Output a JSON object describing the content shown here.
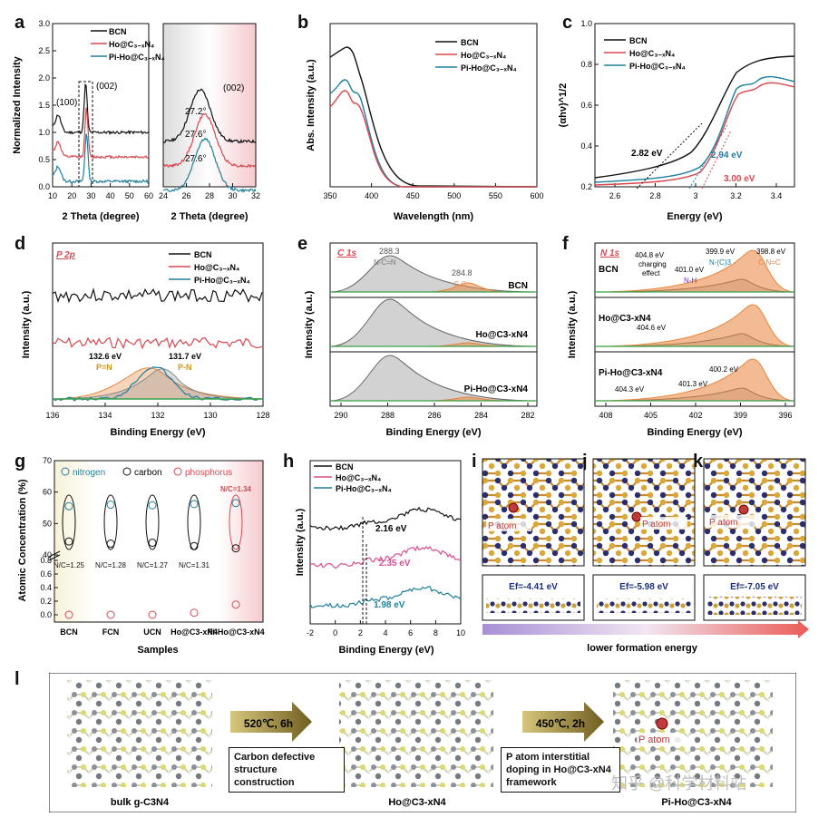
{
  "panel_labels": [
    "a",
    "b",
    "c",
    "d",
    "e",
    "f",
    "g",
    "h",
    "i",
    "j",
    "k",
    "l"
  ],
  "colors": {
    "bcn": "#111111",
    "ho": "#d9474f",
    "pi": "#1f7f9c",
    "orange": "#e8833a",
    "pink": "#d94d8f",
    "gray": "#8a8a8a"
  },
  "samples": {
    "bcn": "BCN",
    "ho": "Ho@C₃₋ₓN₄",
    "pi": "Pi-Ho@C₃₋ₓN₄"
  },
  "chart_data": [
    {
      "id": "a",
      "type": "line",
      "xlabel": "2 Theta (degree)",
      "ylabel": "Normalized Intensity",
      "x_ticks": [
        10,
        20,
        30,
        40,
        50,
        60
      ],
      "y_ticks": [
        0.0,
        0.5,
        1.0,
        1.5,
        2.0,
        2.5,
        3.0
      ],
      "ylim": [
        0,
        3
      ],
      "annotations": [
        "(100)",
        "(002)"
      ],
      "series": [
        {
          "name": "BCN",
          "baseline": 1.0,
          "peak_2theta": 27.2
        },
        {
          "name": "Ho@C3-xN4",
          "baseline": 0.55,
          "peak_2theta": 27.6
        },
        {
          "name": "Pi-Ho@C3-xN4",
          "baseline": 0.1,
          "peak_2theta": 27.6
        }
      ]
    },
    {
      "id": "a-zoom",
      "type": "line",
      "xlabel": "2 Theta (degree)",
      "x_ticks": [
        24,
        26,
        28,
        30,
        32
      ],
      "annotations": [
        "27.2°",
        "27.6°",
        "27.6°",
        "(002)"
      ]
    },
    {
      "id": "b",
      "type": "line",
      "xlabel": "Wavelength (nm)",
      "ylabel": "Abs. Intensity (a.u.)",
      "x_ticks": [
        350,
        400,
        450,
        500,
        550,
        600
      ],
      "legend": [
        "BCN",
        "Ho@C3-xN4",
        "Pi-Ho@C3-xN4"
      ]
    },
    {
      "id": "c",
      "type": "line",
      "xlabel": "Energy (eV)",
      "ylabel": "(αhν)^1/2",
      "x_ticks": [
        2.6,
        2.8,
        3.0,
        3.2,
        3.4
      ],
      "y_ticks": [
        0.2,
        0.4,
        0.6,
        0.8,
        1.0
      ],
      "ylim": [
        0.2,
        1.0
      ],
      "band_gaps": [
        "2.82 eV",
        "2.94 eV",
        "3.00 eV"
      ],
      "legend": [
        "BCN",
        "Ho@C3-xN4",
        "Pi-Ho@C3-xN4"
      ]
    },
    {
      "id": "d",
      "type": "line",
      "title": "P 2p",
      "xlabel": "Binding Energy (eV)",
      "ylabel": "Intensity (a.u.)",
      "x_ticks": [
        136,
        134,
        132,
        130,
        128
      ],
      "peaks": [
        {
          "be": "132.6 eV",
          "label": "P=N"
        },
        {
          "be": "131.7 eV",
          "label": "P-N"
        }
      ]
    },
    {
      "id": "e",
      "type": "line",
      "title": "C 1s",
      "xlabel": "Binding Energy (eV)",
      "ylabel": "Intensity (a.u.)",
      "x_ticks": [
        290,
        288,
        286,
        284,
        282
      ],
      "peaks": [
        {
          "be": "288.3",
          "label": "N-C=N"
        },
        {
          "be": "284.8",
          "label": "C-C"
        }
      ],
      "rows": [
        "BCN",
        "Ho@C3-xN4",
        "Pi-Ho@C3-xN4"
      ]
    },
    {
      "id": "f",
      "type": "line",
      "title": "N 1s",
      "xlabel": "Binding Energy (eV)",
      "ylabel": "Intensity (a.u.)",
      "x_ticks": [
        408,
        405,
        402,
        399,
        396
      ],
      "peaks": [
        "404.8 eV",
        "charging",
        "effect",
        "401.0 eV",
        "N-H",
        "399.9 eV",
        "N-(C)3",
        "398.8 eV",
        "C-N=C",
        "404.6 eV",
        "404.3 eV",
        "401.3 eV",
        "400.2 eV"
      ],
      "rows": [
        "BCN",
        "Ho@C3-xN4",
        "Pi-Ho@C3-xN4"
      ]
    },
    {
      "id": "g",
      "type": "scatter",
      "xlabel": "Samples",
      "ylabel": "Atomic Concentration (%)",
      "categories": [
        "BCN",
        "FCN",
        "UCN",
        "Ho@C3-xN4",
        "Pi-Ho@C3-xN4"
      ],
      "y_ticks_upper": [
        40,
        50,
        60,
        70
      ],
      "y_ticks_lower": [
        0.0,
        0.2,
        0.4,
        0.6,
        0.8
      ],
      "series": [
        {
          "name": "nitrogen",
          "values": [
            55.5,
            56.0,
            55.8,
            56.2,
            56.5
          ]
        },
        {
          "name": "carbon",
          "values": [
            44.3,
            43.6,
            43.9,
            42.8,
            42.1
          ]
        },
        {
          "name": "phosphorus",
          "values": [
            0.0,
            0.0,
            0.0,
            0.03,
            0.15
          ]
        }
      ],
      "ratios": [
        "N/C=1.25",
        "N/C=1.28",
        "N/C=1.27",
        "N/C=1.31",
        "N/C=1.34"
      ],
      "legend": [
        "nitrogen",
        "carbon",
        "phosphorus"
      ]
    },
    {
      "id": "h",
      "type": "line",
      "xlabel": "Binding Energy (eV)",
      "ylabel": "Intensity (a.u.)",
      "x_ticks": [
        -2,
        0,
        2,
        4,
        6,
        8,
        10
      ],
      "vbm": [
        "2.16 eV",
        "2.35 eV",
        "1.98 eV"
      ],
      "legend": [
        "BCN",
        "Ho@C3-xN4",
        "Pi-Ho@C3-xN4"
      ]
    }
  ],
  "dft": {
    "labels": [
      "P atom",
      "P atom",
      "P atom"
    ],
    "energies": [
      "Ef=-4.41 eV",
      "Ef=-5.98 eV",
      "Ef=-7.05 eV"
    ],
    "arrow_text": "lower formation energy"
  },
  "scheme": {
    "step1": "520℃, 6h",
    "step2": "450℃, 2h",
    "box1": "Carbon defective structure construction",
    "box2": "P atom  interstitial doping in Ho@C3-xN4 framework",
    "names": [
      "bulk g-C3N4",
      "Ho@C3-xN4",
      "Pi-Ho@C3-xN4"
    ],
    "p_atom": "P atom",
    "watermark": "知乎 @科学材料站"
  }
}
